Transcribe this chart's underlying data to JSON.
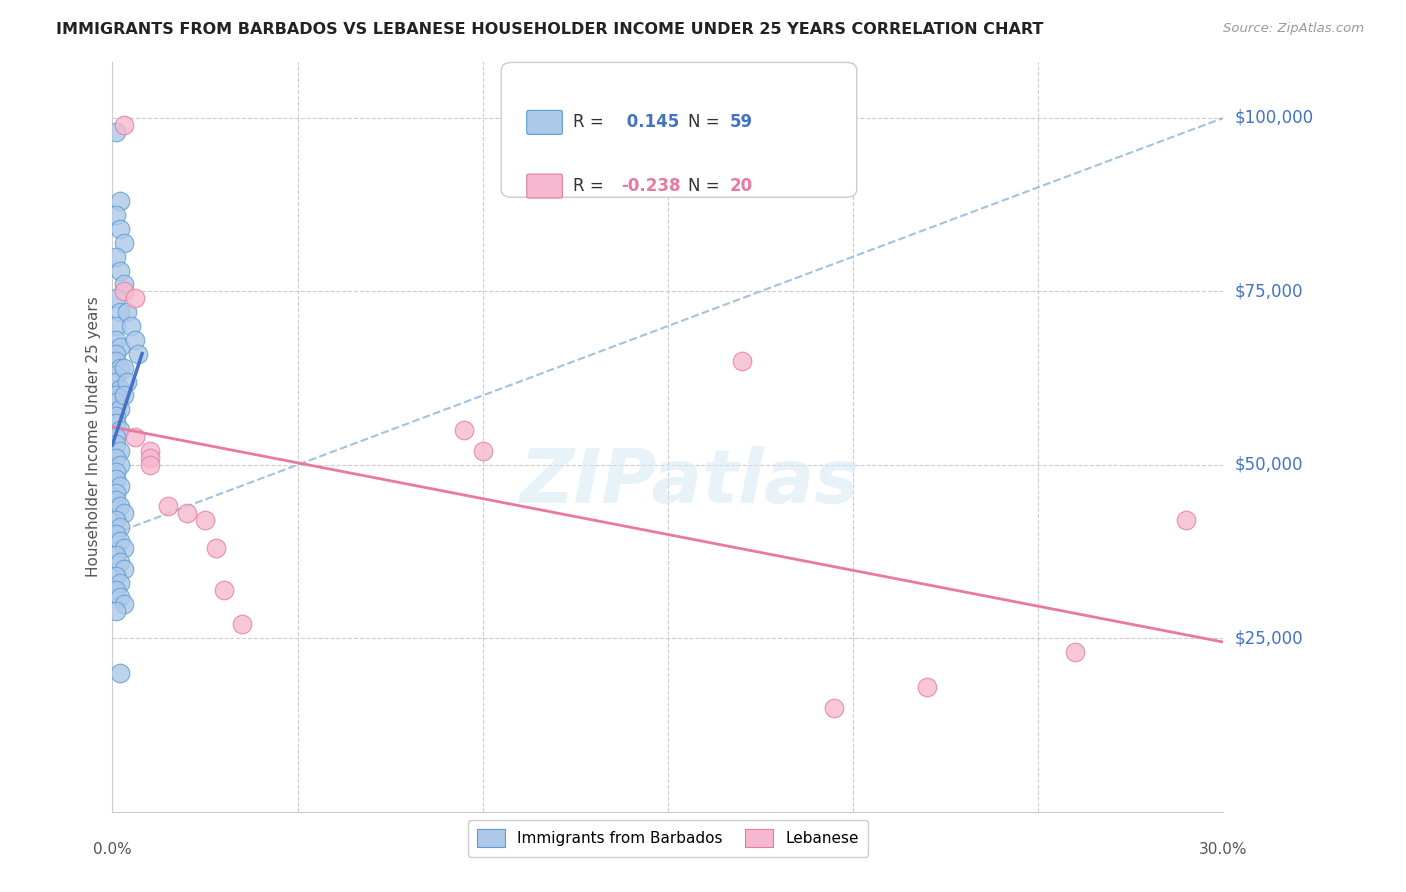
{
  "title": "IMMIGRANTS FROM BARBADOS VS LEBANESE HOUSEHOLDER INCOME UNDER 25 YEARS CORRELATION CHART",
  "source": "Source: ZipAtlas.com",
  "ylabel": "Householder Income Under 25 years",
  "ytick_labels": [
    "$25,000",
    "$50,000",
    "$75,000",
    "$100,000"
  ],
  "ytick_values": [
    25000,
    50000,
    75000,
    100000
  ],
  "ylim": [
    0,
    108000
  ],
  "xlim": [
    0.0,
    0.3
  ],
  "legend_label_blue": "Immigrants from Barbados",
  "legend_label_pink": "Lebanese",
  "color_blue_fill": "#adc8e8",
  "color_pink_fill": "#f5b8ce",
  "color_blue_edge": "#5b9bd5",
  "color_pink_edge": "#e879a0",
  "color_blue_text": "#4472c4",
  "color_pink_text": "#e879a0",
  "color_line_blue": "#4472c4",
  "color_line_pink": "#e879a0",
  "color_line_dashed": "#8ab4d9",
  "background_color": "#ffffff",
  "watermark": "ZIPatlas",
  "r_blue": "0.145",
  "n_blue": "59",
  "r_pink": "-0.238",
  "n_pink": "20",
  "blue_x": [
    0.001,
    0.002,
    0.001,
    0.002,
    0.003,
    0.001,
    0.002,
    0.003,
    0.001,
    0.002,
    0.001,
    0.001,
    0.002,
    0.001,
    0.001,
    0.002,
    0.001,
    0.001,
    0.002,
    0.001,
    0.001,
    0.002,
    0.001,
    0.001,
    0.002,
    0.001,
    0.001,
    0.002,
    0.001,
    0.002,
    0.001,
    0.001,
    0.002,
    0.001,
    0.001,
    0.002,
    0.003,
    0.001,
    0.002,
    0.001,
    0.002,
    0.003,
    0.001,
    0.002,
    0.003,
    0.001,
    0.002,
    0.001,
    0.002,
    0.003,
    0.001,
    0.004,
    0.005,
    0.006,
    0.007,
    0.003,
    0.004,
    0.003,
    0.002
  ],
  "blue_y": [
    98000,
    88000,
    86000,
    84000,
    82000,
    80000,
    78000,
    76000,
    74000,
    72000,
    70000,
    68000,
    67000,
    66000,
    65000,
    64000,
    63000,
    62000,
    61000,
    60000,
    59000,
    58000,
    57000,
    56000,
    55000,
    54000,
    53000,
    52000,
    51000,
    50000,
    49000,
    48000,
    47000,
    46000,
    45000,
    44000,
    43000,
    42000,
    41000,
    40000,
    39000,
    38000,
    37000,
    36000,
    35000,
    34000,
    33000,
    32000,
    31000,
    30000,
    29000,
    72000,
    70000,
    68000,
    66000,
    64000,
    62000,
    60000,
    20000
  ],
  "pink_x": [
    0.003,
    0.003,
    0.006,
    0.006,
    0.01,
    0.01,
    0.01,
    0.015,
    0.02,
    0.025,
    0.028,
    0.03,
    0.035,
    0.095,
    0.1,
    0.17,
    0.195,
    0.22,
    0.26,
    0.29
  ],
  "pink_y": [
    99000,
    75000,
    74000,
    54000,
    52000,
    51000,
    50000,
    44000,
    43000,
    42000,
    38000,
    32000,
    27000,
    55000,
    52000,
    65000,
    15000,
    18000,
    23000,
    42000
  ]
}
